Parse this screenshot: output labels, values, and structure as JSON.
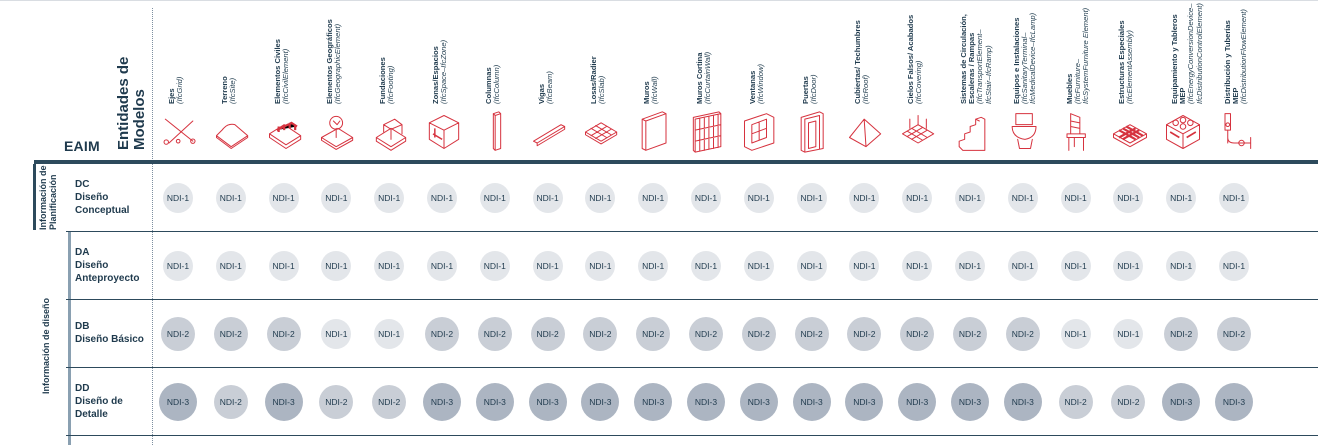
{
  "header": {
    "corner_label": "EAIM",
    "title_line1": "Entidades de",
    "title_line2": "Modelos"
  },
  "columns": [
    {
      "name": "Ejes",
      "ifc": "(IfcGrid)",
      "icon": "grid-axes-icon"
    },
    {
      "name": "Terreno",
      "ifc": "(IfcSite)",
      "icon": "terrain-icon"
    },
    {
      "name": "Elementos Civiles",
      "ifc": "(IfcCivilElement)",
      "icon": "civil-element-icon"
    },
    {
      "name": "Elementos Geográficos",
      "ifc": "(IfcGeographicElement)",
      "icon": "geographic-element-icon"
    },
    {
      "name": "Fundaciones",
      "ifc": "(IfcFooting)",
      "icon": "footing-icon"
    },
    {
      "name": "Zonas/Espacios",
      "ifc": "(IfcSpace–IfcZone)",
      "icon": "space-zone-icon"
    },
    {
      "name": "Columnas",
      "ifc": "(IfcColumn)",
      "icon": "column-icon"
    },
    {
      "name": "Vigas",
      "ifc": "(IfcBeam)",
      "icon": "beam-icon"
    },
    {
      "name": "Losas/Radier",
      "ifc": "(IfcSlab)",
      "icon": "slab-icon"
    },
    {
      "name": "Muros",
      "ifc": "(IfcWall)",
      "icon": "wall-icon"
    },
    {
      "name": "Muros Cortina",
      "ifc": "(IfcCurtainWall)",
      "icon": "curtain-wall-icon"
    },
    {
      "name": "Ventanas",
      "ifc": "(IfcWindow)",
      "icon": "window-icon"
    },
    {
      "name": "Puertas",
      "ifc": "(IfcDoor)",
      "icon": "door-icon"
    },
    {
      "name": "Cubiertas/ Techumbres",
      "ifc": "(IfcRoof)",
      "icon": "roof-icon"
    },
    {
      "name": "Cielos Falsos/ Acabados",
      "ifc": "(IfcCovering)",
      "icon": "covering-icon"
    },
    {
      "name": "Sistemas de Circulación, Escaleras / Rampas",
      "ifc": "(IfcTransportElement–IfcStair–IfcRamp)",
      "icon": "stair-ramp-icon"
    },
    {
      "name": "Equipos e Instalaciones",
      "ifc": "(IfcSanitaryTerminal–IfcMedicalDevice–IfcLamp)",
      "icon": "sanitary-terminal-icon"
    },
    {
      "name": "Muebles",
      "ifc": "(IfcFurniture–IfcSystemFurniture Element)",
      "icon": "furniture-icon"
    },
    {
      "name": "Estructuras Especiales",
      "ifc": "(IfcElementAssembly)",
      "icon": "element-assembly-icon"
    },
    {
      "name": "Equipamiento y Tableros MEP",
      "ifc": "(IfcEnergyConversionDevice–IfcDistributionControlElement)",
      "icon": "mep-equipment-icon"
    },
    {
      "name": "Distribución y Tuberías MEP",
      "ifc": "(IfcDistributionFlowElement)",
      "icon": "pipe-distribution-icon"
    }
  ],
  "groups": [
    {
      "label_line1": "Información de",
      "label_line2": "Planificación"
    },
    {
      "label_line1": "Información de diseño",
      "label_line2": ""
    }
  ],
  "rows": [
    {
      "code": "DC",
      "name_line1": "Diseño",
      "name_line2": "Conceptual",
      "cells": [
        "NDI-1",
        "NDI-1",
        "NDI-1",
        "NDI-1",
        "NDI-1",
        "NDI-1",
        "NDI-1",
        "NDI-1",
        "NDI-1",
        "NDI-1",
        "NDI-1",
        "NDI-1",
        "NDI-1",
        "NDI-1",
        "NDI-1",
        "NDI-1",
        "NDI-1",
        "NDI-1",
        "NDI-1",
        "NDI-1",
        "NDI-1"
      ]
    },
    {
      "code": "DA",
      "name_line1": "Diseño",
      "name_line2": "Anteproyecto",
      "cells": [
        "NDI-1",
        "NDI-1",
        "NDI-1",
        "NDI-1",
        "NDI-1",
        "NDI-1",
        "NDI-1",
        "NDI-1",
        "NDI-1",
        "NDI-1",
        "NDI-1",
        "NDI-1",
        "NDI-1",
        "NDI-1",
        "NDI-1",
        "NDI-1",
        "NDI-1",
        "NDI-1",
        "NDI-1",
        "NDI-1",
        "NDI-1"
      ]
    },
    {
      "code": "DB",
      "name_line1": "Diseño Básico",
      "name_line2": "",
      "cells": [
        "NDI-2",
        "NDI-2",
        "NDI-2",
        "NDI-1",
        "NDI-1",
        "NDI-2",
        "NDI-2",
        "NDI-2",
        "NDI-2",
        "NDI-2",
        "NDI-2",
        "NDI-2",
        "NDI-2",
        "NDI-2",
        "NDI-2",
        "NDI-2",
        "NDI-2",
        "NDI-1",
        "NDI-1",
        "NDI-2",
        "NDI-2"
      ]
    },
    {
      "code": "DD",
      "name_line1": "Diseño de",
      "name_line2": "Detalle",
      "cells": [
        "NDI-3",
        "NDI-2",
        "NDI-3",
        "NDI-2",
        "NDI-2",
        "NDI-3",
        "NDI-3",
        "NDI-3",
        "NDI-3",
        "NDI-3",
        "NDI-3",
        "NDI-3",
        "NDI-3",
        "NDI-3",
        "NDI-3",
        "NDI-3",
        "NDI-3",
        "NDI-2",
        "NDI-2",
        "NDI-3",
        "NDI-3"
      ]
    }
  ],
  "colors": {
    "accent_red": "#d6333f",
    "navy": "#1f3a4d",
    "ndi1": "#e3e6ea",
    "ndi2": "#c9ced6",
    "ndi3": "#acb5c2"
  }
}
